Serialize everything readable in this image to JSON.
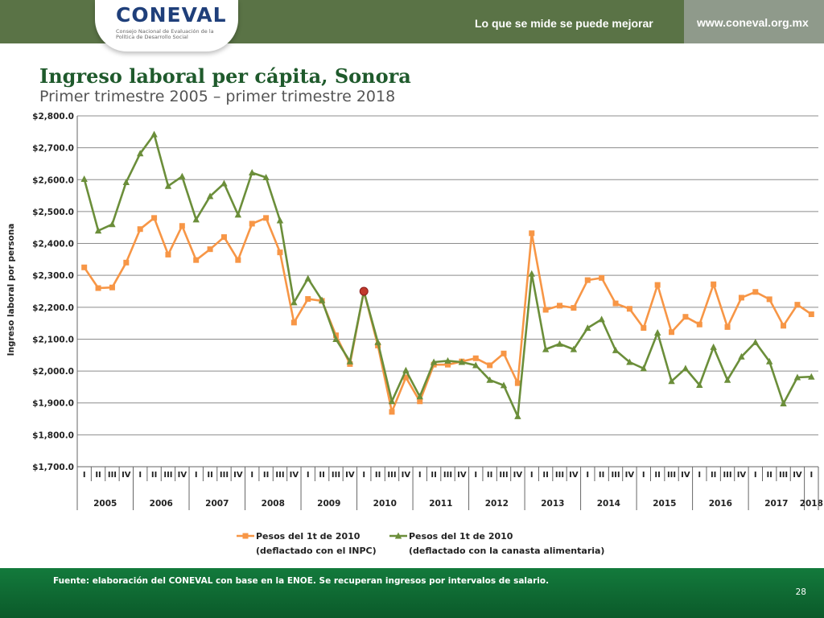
{
  "header": {
    "logo_text": "CONEVAL",
    "logo_subtitle": "Consejo Nacional de Evaluación de la Política de Desarrollo Social",
    "tagline": "Lo que se mide se puede mejorar",
    "url": "www.coneval.org.mx"
  },
  "footer": {
    "source": "Fuente: elaboración del CONEVAL con base en la ENOE. Se recuperan ingresos por intervalos de salario.",
    "page": "28"
  },
  "colors": {
    "series_inpc": "#f79646",
    "series_canasta": "#6b8e3a",
    "highlight": "#c0392b"
  },
  "chart_data": {
    "type": "line",
    "title": "Ingreso laboral per cápita, Sonora",
    "subtitle": "Primer trimestre 2005 – primer trimestre 2018",
    "ylabel": "Ingreso laboral por persona",
    "xlabel": "",
    "ylim": [
      1700,
      2800
    ],
    "y_ticks": [
      1700,
      1800,
      1900,
      2000,
      2100,
      2200,
      2300,
      2400,
      2500,
      2600,
      2700,
      2800
    ],
    "y_tick_labels": [
      "$1,700.0",
      "$1,800.0",
      "$1,900.0",
      "$2,000.0",
      "$2,100.0",
      "$2,200.0",
      "$2,300.0",
      "$2,400.0",
      "$2,500.0",
      "$2,600.0",
      "$2,700.0",
      "$2,800.0"
    ],
    "quarter_labels": [
      "I",
      "II",
      "III",
      "IV"
    ],
    "years": [
      "2005",
      "2006",
      "2007",
      "2008",
      "2009",
      "2010",
      "2011",
      "2012",
      "2013",
      "2014",
      "2015",
      "2016",
      "2017",
      "2018"
    ],
    "grid": true,
    "legend_position": "bottom",
    "series": [
      {
        "name_line1": "Pesos del 1t de 2010",
        "name_line2": "(deflactado con el INPC)",
        "color": "#f79646",
        "marker": "square",
        "values": [
          2325,
          2260,
          2262,
          2340,
          2445,
          2480,
          2365,
          2455,
          2348,
          2382,
          2420,
          2348,
          2462,
          2480,
          2372,
          2152,
          2226,
          2220,
          2112,
          2022,
          2250,
          2080,
          1872,
          1980,
          1905,
          2020,
          2020,
          2030,
          2040,
          2018,
          2055,
          1962,
          2432,
          2192,
          2205,
          2198,
          2285,
          2292,
          2212,
          2195,
          2135,
          2270,
          2122,
          2170,
          2146,
          2272,
          2138,
          2230,
          2248,
          2225,
          2142,
          2208,
          2178
        ]
      },
      {
        "name_line1": "Pesos del 1t de 2010",
        "name_line2": "(deflactado con la canasta alimentaria)",
        "color": "#6b8e3a",
        "marker": "triangle",
        "values": [
          2602,
          2440,
          2460,
          2592,
          2682,
          2742,
          2580,
          2610,
          2475,
          2548,
          2588,
          2490,
          2622,
          2607,
          2472,
          2215,
          2290,
          2222,
          2100,
          2030,
          2250,
          2090,
          1905,
          2002,
          1920,
          2028,
          2032,
          2028,
          2018,
          1972,
          1955,
          1858,
          2305,
          2068,
          2085,
          2068,
          2135,
          2162,
          2065,
          2028,
          2008,
          2120,
          1968,
          2008,
          1956,
          2075,
          1972,
          2045,
          2090,
          2030,
          1898,
          1980,
          1982
        ]
      }
    ],
    "highlight_point": {
      "index": 20,
      "value": 2250
    }
  }
}
